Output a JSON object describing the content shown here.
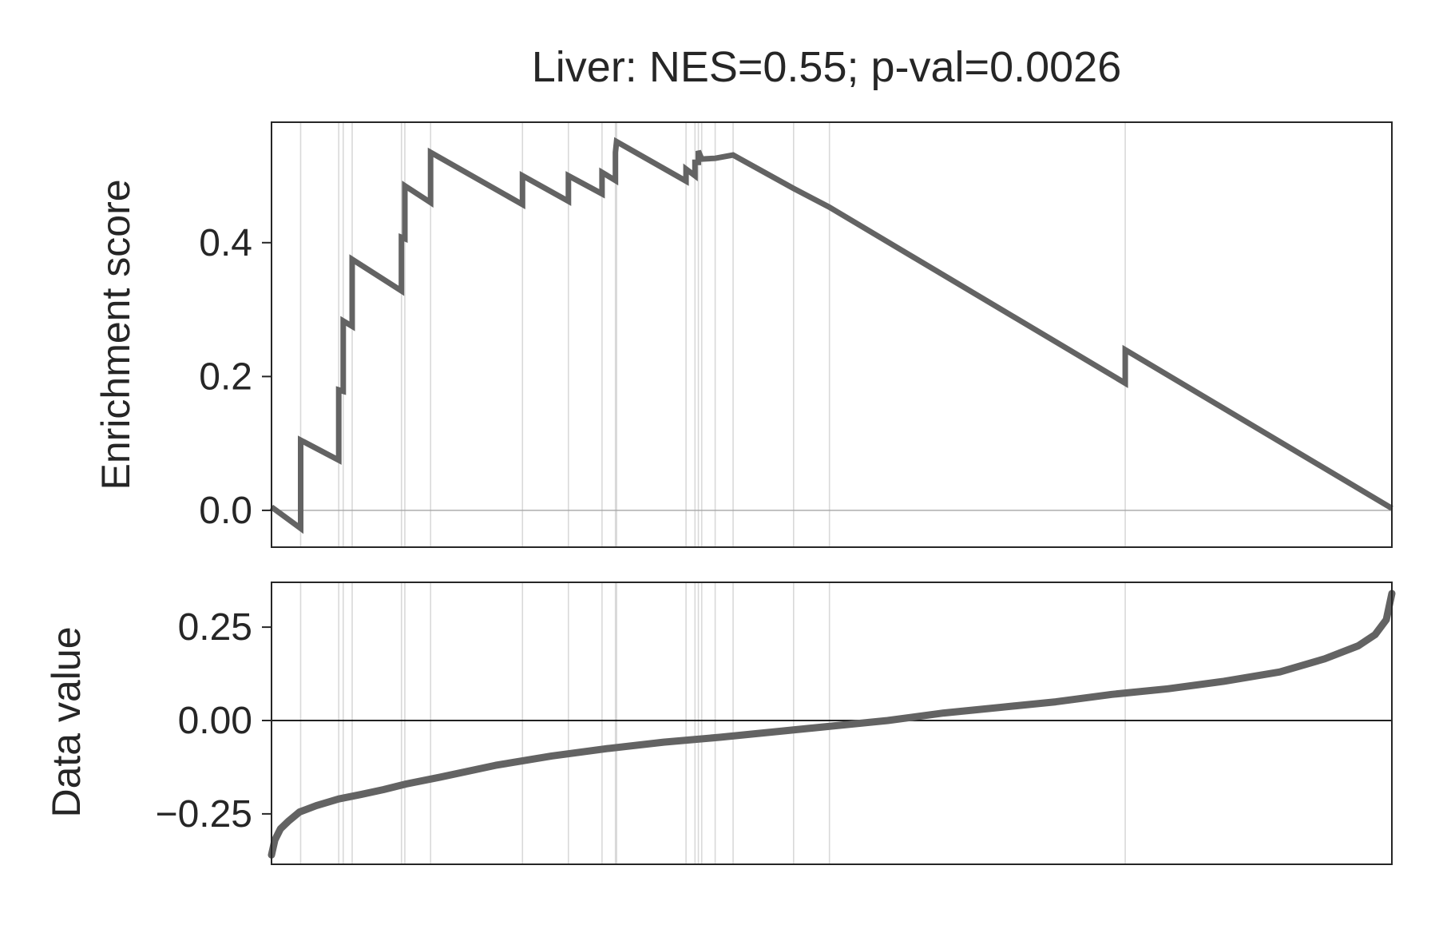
{
  "chart_data": [
    {
      "type": "line",
      "title": "Liver: NES=0.55; p-val=0.0026",
      "ylabel": "Enrichment score",
      "xlabel": "",
      "xlim": [
        0,
        1
      ],
      "ylim": [
        -0.055,
        0.58
      ],
      "yticks": [
        0.0,
        0.2,
        0.4
      ],
      "ytick_labels": [
        "0.0",
        "0.2",
        "0.4"
      ],
      "grid": false,
      "hit_positions": [
        0.026,
        0.06,
        0.064,
        0.072,
        0.116,
        0.119,
        0.142,
        0.224,
        0.265,
        0.295,
        0.307,
        0.308,
        0.37,
        0.378,
        0.381,
        0.384,
        0.396,
        0.412,
        0.466,
        0.498,
        0.762
      ],
      "x": [
        0,
        0.026,
        0.026,
        0.06,
        0.06,
        0.064,
        0.064,
        0.072,
        0.072,
        0.116,
        0.116,
        0.119,
        0.119,
        0.142,
        0.142,
        0.224,
        0.224,
        0.265,
        0.265,
        0.295,
        0.295,
        0.307,
        0.307,
        0.308,
        0.308,
        0.37,
        0.37,
        0.378,
        0.378,
        0.381,
        0.381,
        0.384,
        0.384,
        0.396,
        0.396,
        0.412,
        0.412,
        0.466,
        0.466,
        0.498,
        0.498,
        0.762,
        0.762,
        1
      ],
      "y": [
        0.005,
        -0.027,
        0.105,
        0.075,
        0.18,
        0.178,
        0.283,
        0.275,
        0.375,
        0.328,
        0.408,
        0.406,
        0.485,
        0.46,
        0.535,
        0.457,
        0.5,
        0.462,
        0.5,
        0.473,
        0.505,
        0.493,
        0.535,
        0.551,
        0.551,
        0.492,
        0.51,
        0.5,
        0.52,
        0.52,
        0.537,
        0.525,
        0.525,
        0.526,
        0.526,
        0.531,
        0.531,
        0.481,
        0.481,
        0.453,
        0.453,
        0.19,
        0.24,
        0.003
      ]
    },
    {
      "type": "line",
      "title": "",
      "ylabel": "Data value",
      "xlabel": "",
      "xlim": [
        0,
        1
      ],
      "ylim": [
        -0.385,
        0.37
      ],
      "yticks": [
        -0.25,
        0.0,
        0.25
      ],
      "ytick_labels": [
        "−0.25",
        "0.00",
        "0.25"
      ],
      "grid": false,
      "hit_positions": [
        0.026,
        0.06,
        0.064,
        0.072,
        0.116,
        0.119,
        0.142,
        0.224,
        0.265,
        0.295,
        0.307,
        0.308,
        0.37,
        0.378,
        0.381,
        0.384,
        0.396,
        0.412,
        0.466,
        0.498,
        0.762
      ],
      "x": [
        0,
        0.003,
        0.008,
        0.015,
        0.025,
        0.04,
        0.06,
        0.08,
        0.1,
        0.12,
        0.15,
        0.2,
        0.25,
        0.3,
        0.35,
        0.4,
        0.45,
        0.5,
        0.55,
        0.6,
        0.65,
        0.7,
        0.75,
        0.8,
        0.85,
        0.9,
        0.94,
        0.97,
        0.985,
        0.995,
        1.0
      ],
      "y": [
        -0.36,
        -0.32,
        -0.29,
        -0.27,
        -0.245,
        -0.228,
        -0.21,
        -0.198,
        -0.185,
        -0.17,
        -0.152,
        -0.12,
        -0.095,
        -0.075,
        -0.058,
        -0.045,
        -0.03,
        -0.015,
        0.0,
        0.02,
        0.035,
        0.05,
        0.07,
        0.085,
        0.105,
        0.13,
        0.165,
        0.2,
        0.23,
        0.27,
        0.34
      ]
    }
  ]
}
